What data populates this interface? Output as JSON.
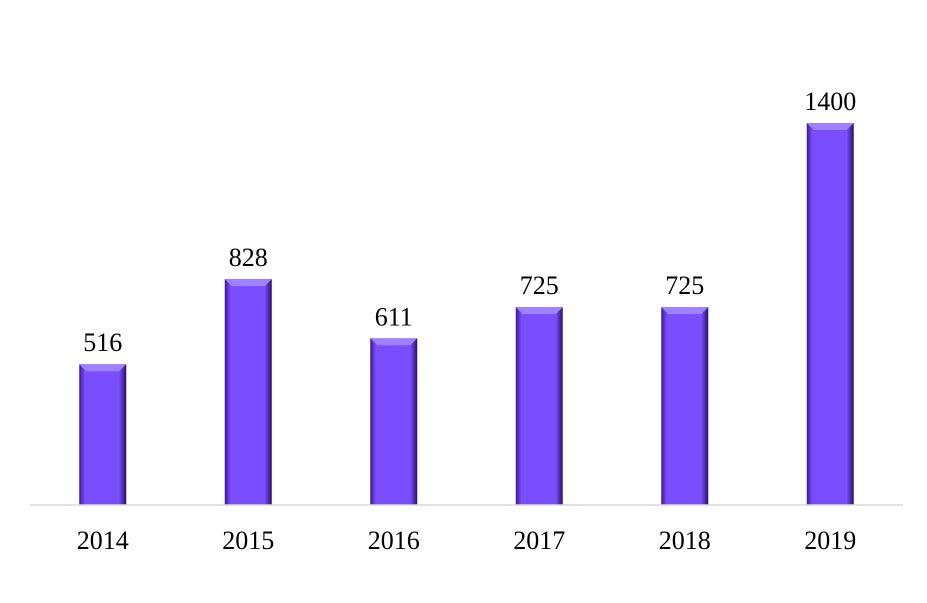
{
  "chart_data": {
    "type": "bar",
    "categories": [
      "2014",
      "2015",
      "2016",
      "2017",
      "2018",
      "2019"
    ],
    "values": [
      516,
      828,
      611,
      725,
      725,
      1400
    ],
    "title": "",
    "xlabel": "",
    "ylabel": "",
    "ylim": [
      0,
      1400
    ],
    "grid": false,
    "legend": "none",
    "data_labels": true,
    "colors": {
      "bar": "#7a4dff",
      "bar_dark": "#3a1a8f",
      "bar_light": "#9f82ff",
      "axis": "#d9d9d9"
    }
  }
}
